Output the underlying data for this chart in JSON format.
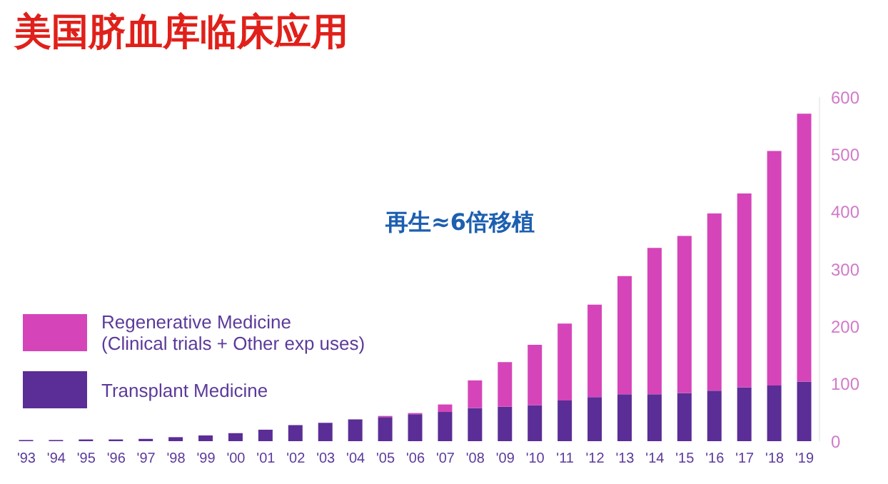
{
  "chart_data": {
    "type": "bar",
    "title": "美国脐血库临床应用",
    "annotations": [
      "再生≈6倍移植"
    ],
    "stacked": true,
    "legend": "left",
    "grid": false,
    "categories": [
      "'93",
      "'94",
      "'95",
      "'96",
      "'97",
      "'98",
      "'99",
      "'00",
      "'01",
      "'02",
      "'03",
      "'04",
      "'05",
      "'06",
      "'07",
      "'08",
      "'09",
      "'10",
      "'11",
      "'12",
      "'13",
      "'14",
      "'15",
      "'16",
      "'17",
      "'18",
      "'19"
    ],
    "series": [
      {
        "name": "Transplant Medicine",
        "color": "#5b2d96",
        "values": [
          2,
          2,
          3,
          3,
          4,
          7,
          10,
          14,
          20,
          28,
          32,
          38,
          42,
          47,
          51,
          58,
          60,
          63,
          71,
          77,
          82,
          82,
          84,
          88,
          94,
          97,
          104
        ]
      },
      {
        "name": "Regenerative Medicine\n(Clinical trials + Other exp uses)",
        "color": "#d545b9",
        "values": [
          0,
          0,
          0,
          0,
          0,
          0,
          0,
          0,
          0,
          0,
          0,
          0,
          2,
          2,
          13,
          48,
          78,
          105,
          134,
          161,
          206,
          255,
          274,
          309,
          338,
          409,
          467
        ]
      }
    ],
    "ylim": [
      0,
      600
    ],
    "yticks": [
      0,
      100,
      200,
      300,
      400,
      500,
      600
    ]
  }
}
